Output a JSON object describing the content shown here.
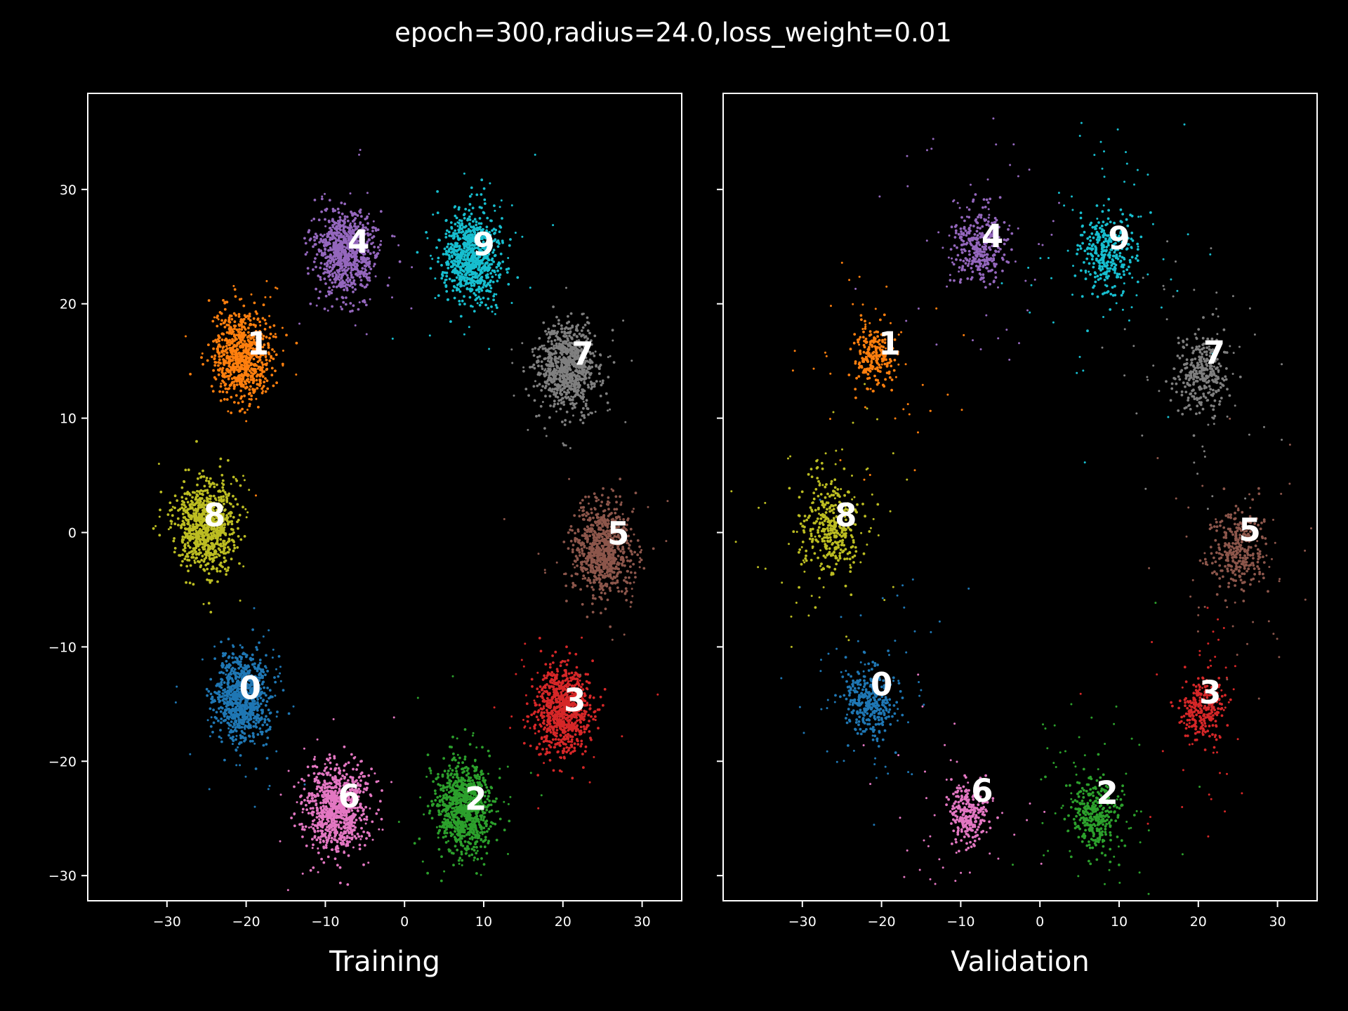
{
  "figure": {
    "title": "epoch=300,radius=24.0,loss_weight=0.01"
  },
  "chart_data": [
    {
      "type": "scatter",
      "xlabel": "Training",
      "ylabel": "",
      "title": "",
      "xlim": [
        -40,
        35
      ],
      "ylim": [
        -32.2,
        38.4
      ],
      "xticks": [
        -30,
        -20,
        -10,
        0,
        10,
        20,
        30
      ],
      "yticks": [
        -30,
        -20,
        -10,
        0,
        10,
        20,
        30
      ],
      "xtick_labels": [
        "−30",
        "−20",
        "−10",
        "0",
        "10",
        "20",
        "30"
      ],
      "ytick_labels": [
        "−30",
        "−20",
        "−10",
        "0",
        "10",
        "20",
        "30"
      ],
      "grid": false,
      "legend": "none",
      "clusters": [
        {
          "label": "0",
          "color": "#1f77b4",
          "center": [
            -20.5,
            -14.5
          ],
          "spread": 1.8,
          "outlier_spread": 3.5,
          "n": 900,
          "label_pos": [
            -19.5,
            -13.8
          ]
        },
        {
          "label": "1",
          "color": "#ff7f0e",
          "center": [
            -20.5,
            15.5
          ],
          "spread": 1.8,
          "outlier_spread": 3.5,
          "n": 800,
          "label_pos": [
            -18.5,
            16.3
          ]
        },
        {
          "label": "2",
          "color": "#2ca02c",
          "center": [
            7.5,
            -24.0
          ],
          "spread": 1.8,
          "outlier_spread": 3.5,
          "n": 900,
          "label_pos": [
            9.0,
            -23.5
          ]
        },
        {
          "label": "3",
          "color": "#d62728",
          "center": [
            20.0,
            -15.5
          ],
          "spread": 1.8,
          "outlier_spread": 3.5,
          "n": 850,
          "label_pos": [
            21.5,
            -14.9
          ]
        },
        {
          "label": "4",
          "color": "#9467bd",
          "center": [
            -7.5,
            24.5
          ],
          "spread": 1.8,
          "outlier_spread": 3.5,
          "n": 850,
          "label_pos": [
            -5.8,
            25.2
          ]
        },
        {
          "label": "5",
          "color": "#8c564b",
          "center": [
            25.0,
            -1.5
          ],
          "spread": 1.8,
          "outlier_spread": 3.8,
          "n": 850,
          "label_pos": [
            27.0,
            -0.3
          ]
        },
        {
          "label": "6",
          "color": "#e377c2",
          "center": [
            -8.5,
            -24.0
          ],
          "spread": 1.8,
          "outlier_spread": 3.5,
          "n": 850,
          "label_pos": [
            -7.0,
            -23.3
          ]
        },
        {
          "label": "7",
          "color": "#7f7f7f",
          "center": [
            20.5,
            14.5
          ],
          "spread": 1.8,
          "outlier_spread": 3.8,
          "n": 850,
          "label_pos": [
            22.5,
            15.4
          ]
        },
        {
          "label": "8",
          "color": "#bcbd22",
          "center": [
            -25.0,
            0.5
          ],
          "spread": 1.8,
          "outlier_spread": 3.5,
          "n": 900,
          "label_pos": [
            -24.0,
            1.3
          ]
        },
        {
          "label": "9",
          "color": "#17becf",
          "center": [
            8.5,
            24.0
          ],
          "spread": 1.8,
          "outlier_spread": 3.8,
          "n": 850,
          "label_pos": [
            10.0,
            25.0
          ]
        }
      ]
    },
    {
      "type": "scatter",
      "xlabel": "Validation",
      "ylabel": "",
      "title": "",
      "xlim": [
        -40,
        35
      ],
      "ylim": [
        -32.2,
        38.4
      ],
      "xticks": [
        -30,
        -20,
        -10,
        0,
        10,
        20,
        30
      ],
      "yticks": [
        -30,
        -20,
        -10,
        0,
        10,
        20,
        30
      ],
      "xtick_labels": [
        "−30",
        "−20",
        "−10",
        "0",
        "10",
        "20",
        "30"
      ],
      "ytick_labels": [
        "",
        "",
        "",
        "",
        "",
        "",
        ""
      ],
      "grid": false,
      "legend": "none",
      "clusters": [
        {
          "label": "0",
          "color": "#1f77b4",
          "center": [
            -21.5,
            -14.8
          ],
          "spread": 1.5,
          "outlier_spread": 5.0,
          "n": 380,
          "label_pos": [
            -20.0,
            -13.5
          ]
        },
        {
          "label": "1",
          "color": "#ff7f0e",
          "center": [
            -21.0,
            15.5
          ],
          "spread": 1.2,
          "outlier_spread": 5.0,
          "n": 260,
          "label_pos": [
            -19.0,
            16.3
          ]
        },
        {
          "label": "2",
          "color": "#2ca02c",
          "center": [
            7.0,
            -24.5
          ],
          "spread": 1.5,
          "outlier_spread": 5.0,
          "n": 380,
          "label_pos": [
            8.5,
            -23.0
          ]
        },
        {
          "label": "3",
          "color": "#d62728",
          "center": [
            20.5,
            -15.5
          ],
          "spread": 1.3,
          "outlier_spread": 5.0,
          "n": 300,
          "label_pos": [
            21.5,
            -14.2
          ]
        },
        {
          "label": "4",
          "color": "#9467bd",
          "center": [
            -7.5,
            25.0
          ],
          "spread": 1.6,
          "outlier_spread": 5.0,
          "n": 380,
          "label_pos": [
            -6.0,
            25.7
          ]
        },
        {
          "label": "5",
          "color": "#8c564b",
          "center": [
            25.0,
            -1.5
          ],
          "spread": 1.6,
          "outlier_spread": 5.0,
          "n": 360,
          "label_pos": [
            26.5,
            0.0
          ]
        },
        {
          "label": "6",
          "color": "#e377c2",
          "center": [
            -9.0,
            -24.5
          ],
          "spread": 1.3,
          "outlier_spread": 5.0,
          "n": 300,
          "label_pos": [
            -7.3,
            -22.8
          ]
        },
        {
          "label": "7",
          "color": "#7f7f7f",
          "center": [
            20.5,
            14.0
          ],
          "spread": 1.6,
          "outlier_spread": 5.0,
          "n": 360,
          "label_pos": [
            22.0,
            15.5
          ]
        },
        {
          "label": "8",
          "color": "#bcbd22",
          "center": [
            -26.5,
            0.5
          ],
          "spread": 1.8,
          "outlier_spread": 5.0,
          "n": 400,
          "label_pos": [
            -24.5,
            1.3
          ]
        },
        {
          "label": "9",
          "color": "#17becf",
          "center": [
            8.5,
            24.5
          ],
          "spread": 1.6,
          "outlier_spread": 5.0,
          "n": 380,
          "label_pos": [
            10.0,
            25.5
          ]
        }
      ]
    }
  ]
}
